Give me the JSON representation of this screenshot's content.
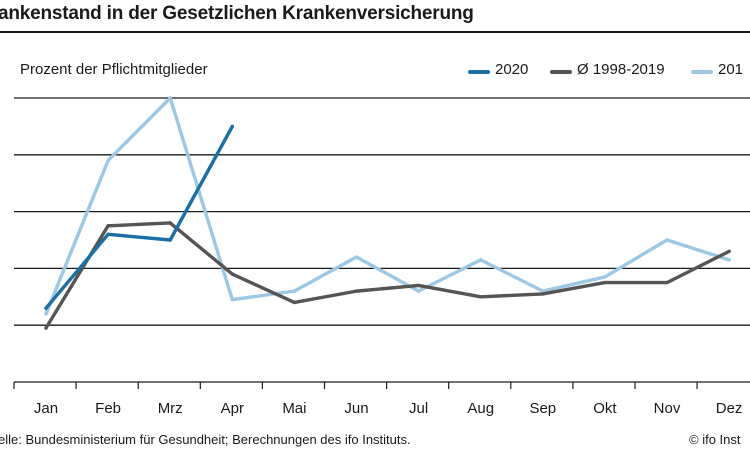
{
  "header": {
    "title": "ankenstand  in der Gesetzlichen Krankenversicherung"
  },
  "footer": {
    "source": "elle: Bundesministerium für Gesundheit; Berechnungen des ifo Instituts.",
    "copyright": "© ifo Inst"
  },
  "chart_data": {
    "type": "line",
    "ylabel": "Prozent der Pflichtmitglieder",
    "categories": [
      "Jan",
      "Feb",
      "Mrz",
      "Apr",
      "Mai",
      "Jun",
      "Jul",
      "Aug",
      "Sep",
      "Okt",
      "Nov",
      "Dez"
    ],
    "ylim": [
      0,
      5
    ],
    "grid": true,
    "legend_position": "top-right",
    "series": [
      {
        "name": "2020",
        "color": "#1a6fa8",
        "values": [
          1.3,
          2.6,
          2.5,
          4.5,
          null,
          null,
          null,
          null,
          null,
          null,
          null,
          null
        ]
      },
      {
        "name": "Ø 1998-2019",
        "color": "#555555",
        "values": [
          0.95,
          2.75,
          2.8,
          1.9,
          1.4,
          1.6,
          1.7,
          1.5,
          1.55,
          1.75,
          1.75,
          2.3
        ]
      },
      {
        "name": "201",
        "color": "#9cc8e6",
        "values": [
          1.2,
          3.9,
          5.0,
          1.45,
          1.6,
          2.2,
          1.6,
          2.15,
          1.6,
          1.85,
          2.5,
          2.15
        ]
      }
    ]
  }
}
